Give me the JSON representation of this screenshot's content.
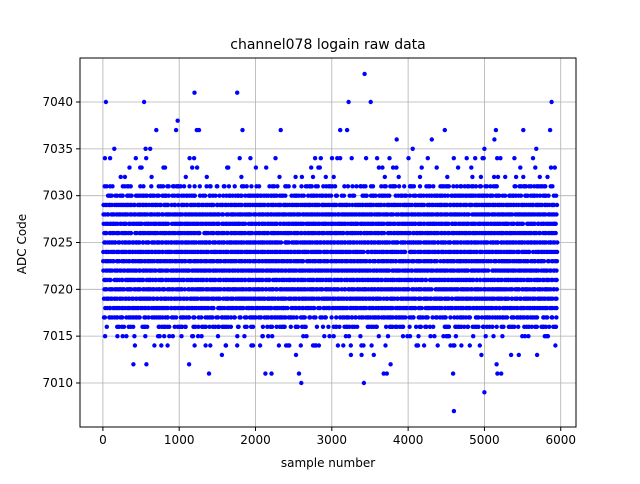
{
  "chart_data": {
    "type": "scatter",
    "title": "channel078 logain raw data",
    "xlabel": "sample number",
    "ylabel": "ADC Code",
    "xlim": [
      -300,
      6200
    ],
    "ylim": [
      7005.3,
      7044.7
    ],
    "xticks": [
      0,
      1000,
      2000,
      3000,
      4000,
      5000,
      6000
    ],
    "yticks": [
      7010,
      7015,
      7020,
      7025,
      7030,
      7035,
      7040
    ],
    "grid": true,
    "point_color": "#0000ff",
    "x_range_of_samples": [
      0,
      5950
    ],
    "dense_band": {
      "y_min": 7016,
      "y_max": 7031,
      "note": "nearly every integer code 7016-7031 is populated across all samples"
    },
    "sparse_points": [
      {
        "x": 40,
        "y": 7040
      },
      {
        "x": 540,
        "y": 7040
      },
      {
        "x": 1200,
        "y": 7041
      },
      {
        "x": 1760,
        "y": 7041
      },
      {
        "x": 3430,
        "y": 7043
      },
      {
        "x": 3220,
        "y": 7040
      },
      {
        "x": 3510,
        "y": 7040
      },
      {
        "x": 5880,
        "y": 7040
      },
      {
        "x": 980,
        "y": 7038
      },
      {
        "x": 960,
        "y": 7037
      },
      {
        "x": 700,
        "y": 7037
      },
      {
        "x": 1230,
        "y": 7037
      },
      {
        "x": 1260,
        "y": 7037
      },
      {
        "x": 1830,
        "y": 7037
      },
      {
        "x": 2330,
        "y": 7037
      },
      {
        "x": 3200,
        "y": 7037
      },
      {
        "x": 3110,
        "y": 7037
      },
      {
        "x": 4480,
        "y": 7037
      },
      {
        "x": 5150,
        "y": 7037
      },
      {
        "x": 5510,
        "y": 7037
      },
      {
        "x": 5860,
        "y": 7037
      },
      {
        "x": 150,
        "y": 7035
      },
      {
        "x": 560,
        "y": 7035
      },
      {
        "x": 620,
        "y": 7035
      },
      {
        "x": 3850,
        "y": 7036
      },
      {
        "x": 4060,
        "y": 7035
      },
      {
        "x": 4310,
        "y": 7036
      },
      {
        "x": 5000,
        "y": 7035
      },
      {
        "x": 5130,
        "y": 7036
      },
      {
        "x": 5680,
        "y": 7035
      },
      {
        "x": 190,
        "y": 7015
      },
      {
        "x": 260,
        "y": 7015
      },
      {
        "x": 400,
        "y": 7012
      },
      {
        "x": 570,
        "y": 7012
      },
      {
        "x": 1130,
        "y": 7012
      },
      {
        "x": 1390,
        "y": 7011
      },
      {
        "x": 1560,
        "y": 7013
      },
      {
        "x": 1760,
        "y": 7014
      },
      {
        "x": 2060,
        "y": 7014
      },
      {
        "x": 2130,
        "y": 7011
      },
      {
        "x": 2210,
        "y": 7011
      },
      {
        "x": 2530,
        "y": 7013
      },
      {
        "x": 2570,
        "y": 7011
      },
      {
        "x": 2600,
        "y": 7010
      },
      {
        "x": 3080,
        "y": 7014
      },
      {
        "x": 3250,
        "y": 7013
      },
      {
        "x": 3390,
        "y": 7013
      },
      {
        "x": 3420,
        "y": 7010
      },
      {
        "x": 3550,
        "y": 7013
      },
      {
        "x": 3680,
        "y": 7011
      },
      {
        "x": 3720,
        "y": 7011
      },
      {
        "x": 3770,
        "y": 7012
      },
      {
        "x": 4130,
        "y": 7014
      },
      {
        "x": 4210,
        "y": 7014
      },
      {
        "x": 4590,
        "y": 7011
      },
      {
        "x": 4600,
        "y": 7007
      },
      {
        "x": 4960,
        "y": 7013
      },
      {
        "x": 5000,
        "y": 7009
      },
      {
        "x": 5160,
        "y": 7012
      },
      {
        "x": 5170,
        "y": 7011
      },
      {
        "x": 5220,
        "y": 7011
      },
      {
        "x": 5350,
        "y": 7013
      },
      {
        "x": 5450,
        "y": 7013
      },
      {
        "x": 5690,
        "y": 7013
      },
      {
        "x": 5930,
        "y": 7014
      }
    ]
  }
}
